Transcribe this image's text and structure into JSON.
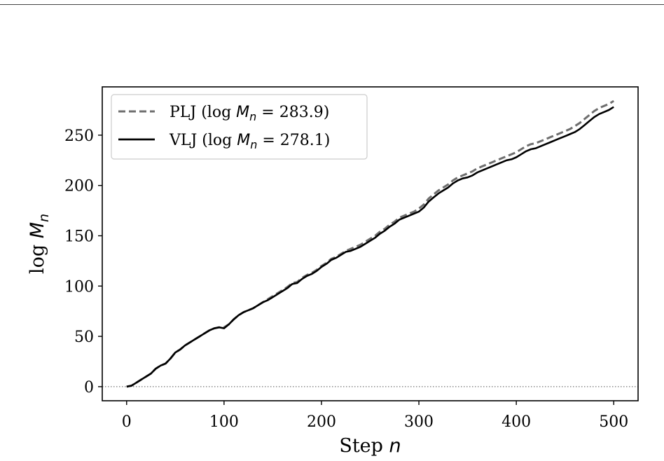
{
  "chart_data": {
    "type": "line",
    "xlabel": {
      "prefix": "Step ",
      "var": "n"
    },
    "ylabel": {
      "prefix": "log ",
      "var": "M",
      "sub": "n"
    },
    "xlim": [
      -25,
      525
    ],
    "ylim": [
      -14,
      298
    ],
    "xticks": [
      0,
      100,
      200,
      300,
      400,
      500
    ],
    "yticks": [
      0,
      50,
      100,
      150,
      200,
      250
    ],
    "reference_line": {
      "y": 0,
      "style": "dotted"
    },
    "legend_position": "upper-left",
    "series": [
      {
        "name": "PLJ",
        "legend_text": {
          "pre": "PLJ (log ",
          "var": "M",
          "sub": "n",
          "post": " = 283.9)"
        },
        "color": "#6e6e6e",
        "style": "dashed",
        "x": [
          0,
          5,
          10,
          15,
          20,
          25,
          30,
          35,
          40,
          45,
          50,
          55,
          60,
          65,
          70,
          75,
          80,
          85,
          90,
          95,
          100,
          105,
          110,
          115,
          120,
          125,
          130,
          135,
          140,
          145,
          150,
          155,
          160,
          165,
          170,
          175,
          180,
          185,
          190,
          195,
          200,
          205,
          210,
          215,
          220,
          225,
          230,
          235,
          240,
          245,
          250,
          255,
          260,
          265,
          270,
          275,
          280,
          285,
          290,
          295,
          300,
          305,
          310,
          315,
          320,
          325,
          330,
          335,
          340,
          345,
          350,
          355,
          360,
          365,
          370,
          375,
          380,
          385,
          390,
          395,
          400,
          405,
          410,
          415,
          420,
          425,
          430,
          435,
          440,
          445,
          450,
          455,
          460,
          465,
          470,
          475,
          480,
          485,
          490,
          495,
          500
        ],
        "values": [
          0,
          1,
          4,
          7,
          10,
          13,
          18,
          21,
          23,
          28,
          34,
          37,
          41,
          44,
          47,
          50,
          53,
          56,
          58,
          59,
          59,
          62,
          67,
          71,
          74,
          76,
          78,
          81,
          84,
          87,
          90,
          93,
          96,
          99,
          103,
          104,
          108,
          111,
          113,
          116,
          120,
          123,
          127,
          129,
          132,
          135,
          137,
          139,
          141,
          144,
          147,
          150,
          154,
          157,
          161,
          164,
          168,
          170,
          172,
          174,
          177,
          181,
          187,
          191,
          195,
          198,
          201,
          205,
          208,
          210,
          212,
          214,
          217,
          219,
          221,
          223,
          225,
          227,
          229,
          231,
          233,
          236,
          239,
          241,
          242,
          244,
          246,
          248,
          250,
          252,
          254,
          256,
          259,
          262,
          266,
          270,
          274,
          277,
          279,
          281,
          284
        ]
      },
      {
        "name": "VLJ",
        "legend_text": {
          "pre": "VLJ (log ",
          "var": "M",
          "sub": "n",
          "post": " = 278.1)"
        },
        "color": "#000000",
        "style": "solid",
        "x": [
          0,
          5,
          10,
          15,
          20,
          25,
          30,
          35,
          40,
          45,
          50,
          55,
          60,
          65,
          70,
          75,
          80,
          85,
          90,
          95,
          100,
          105,
          110,
          115,
          120,
          125,
          130,
          135,
          140,
          145,
          150,
          155,
          160,
          165,
          170,
          175,
          180,
          185,
          190,
          195,
          200,
          205,
          210,
          215,
          220,
          225,
          230,
          235,
          240,
          245,
          250,
          255,
          260,
          265,
          270,
          275,
          280,
          285,
          290,
          295,
          300,
          305,
          310,
          315,
          320,
          325,
          330,
          335,
          340,
          345,
          350,
          355,
          360,
          365,
          370,
          375,
          380,
          385,
          390,
          395,
          400,
          405,
          410,
          415,
          420,
          425,
          430,
          435,
          440,
          445,
          450,
          455,
          460,
          465,
          470,
          475,
          480,
          485,
          490,
          495,
          500
        ],
        "values": [
          0,
          1,
          4,
          7,
          10,
          13,
          18,
          21,
          23,
          28,
          34,
          37,
          41,
          44,
          47,
          50,
          53,
          56,
          58,
          59,
          58,
          62,
          67,
          71,
          74,
          76,
          78,
          81,
          84,
          86,
          89,
          92,
          95,
          98,
          102,
          103,
          107,
          110,
          112,
          115,
          119,
          122,
          126,
          128,
          131,
          134,
          135,
          137,
          139,
          142,
          145,
          148,
          152,
          155,
          159,
          162,
          166,
          168,
          170,
          172,
          174,
          178,
          184,
          188,
          192,
          195,
          198,
          202,
          205,
          207,
          208,
          210,
          213,
          215,
          217,
          219,
          221,
          223,
          225,
          226,
          228,
          231,
          234,
          236,
          237,
          239,
          241,
          243,
          245,
          247,
          249,
          251,
          253,
          256,
          260,
          264,
          268,
          271,
          273,
          275,
          278
        ]
      }
    ]
  }
}
